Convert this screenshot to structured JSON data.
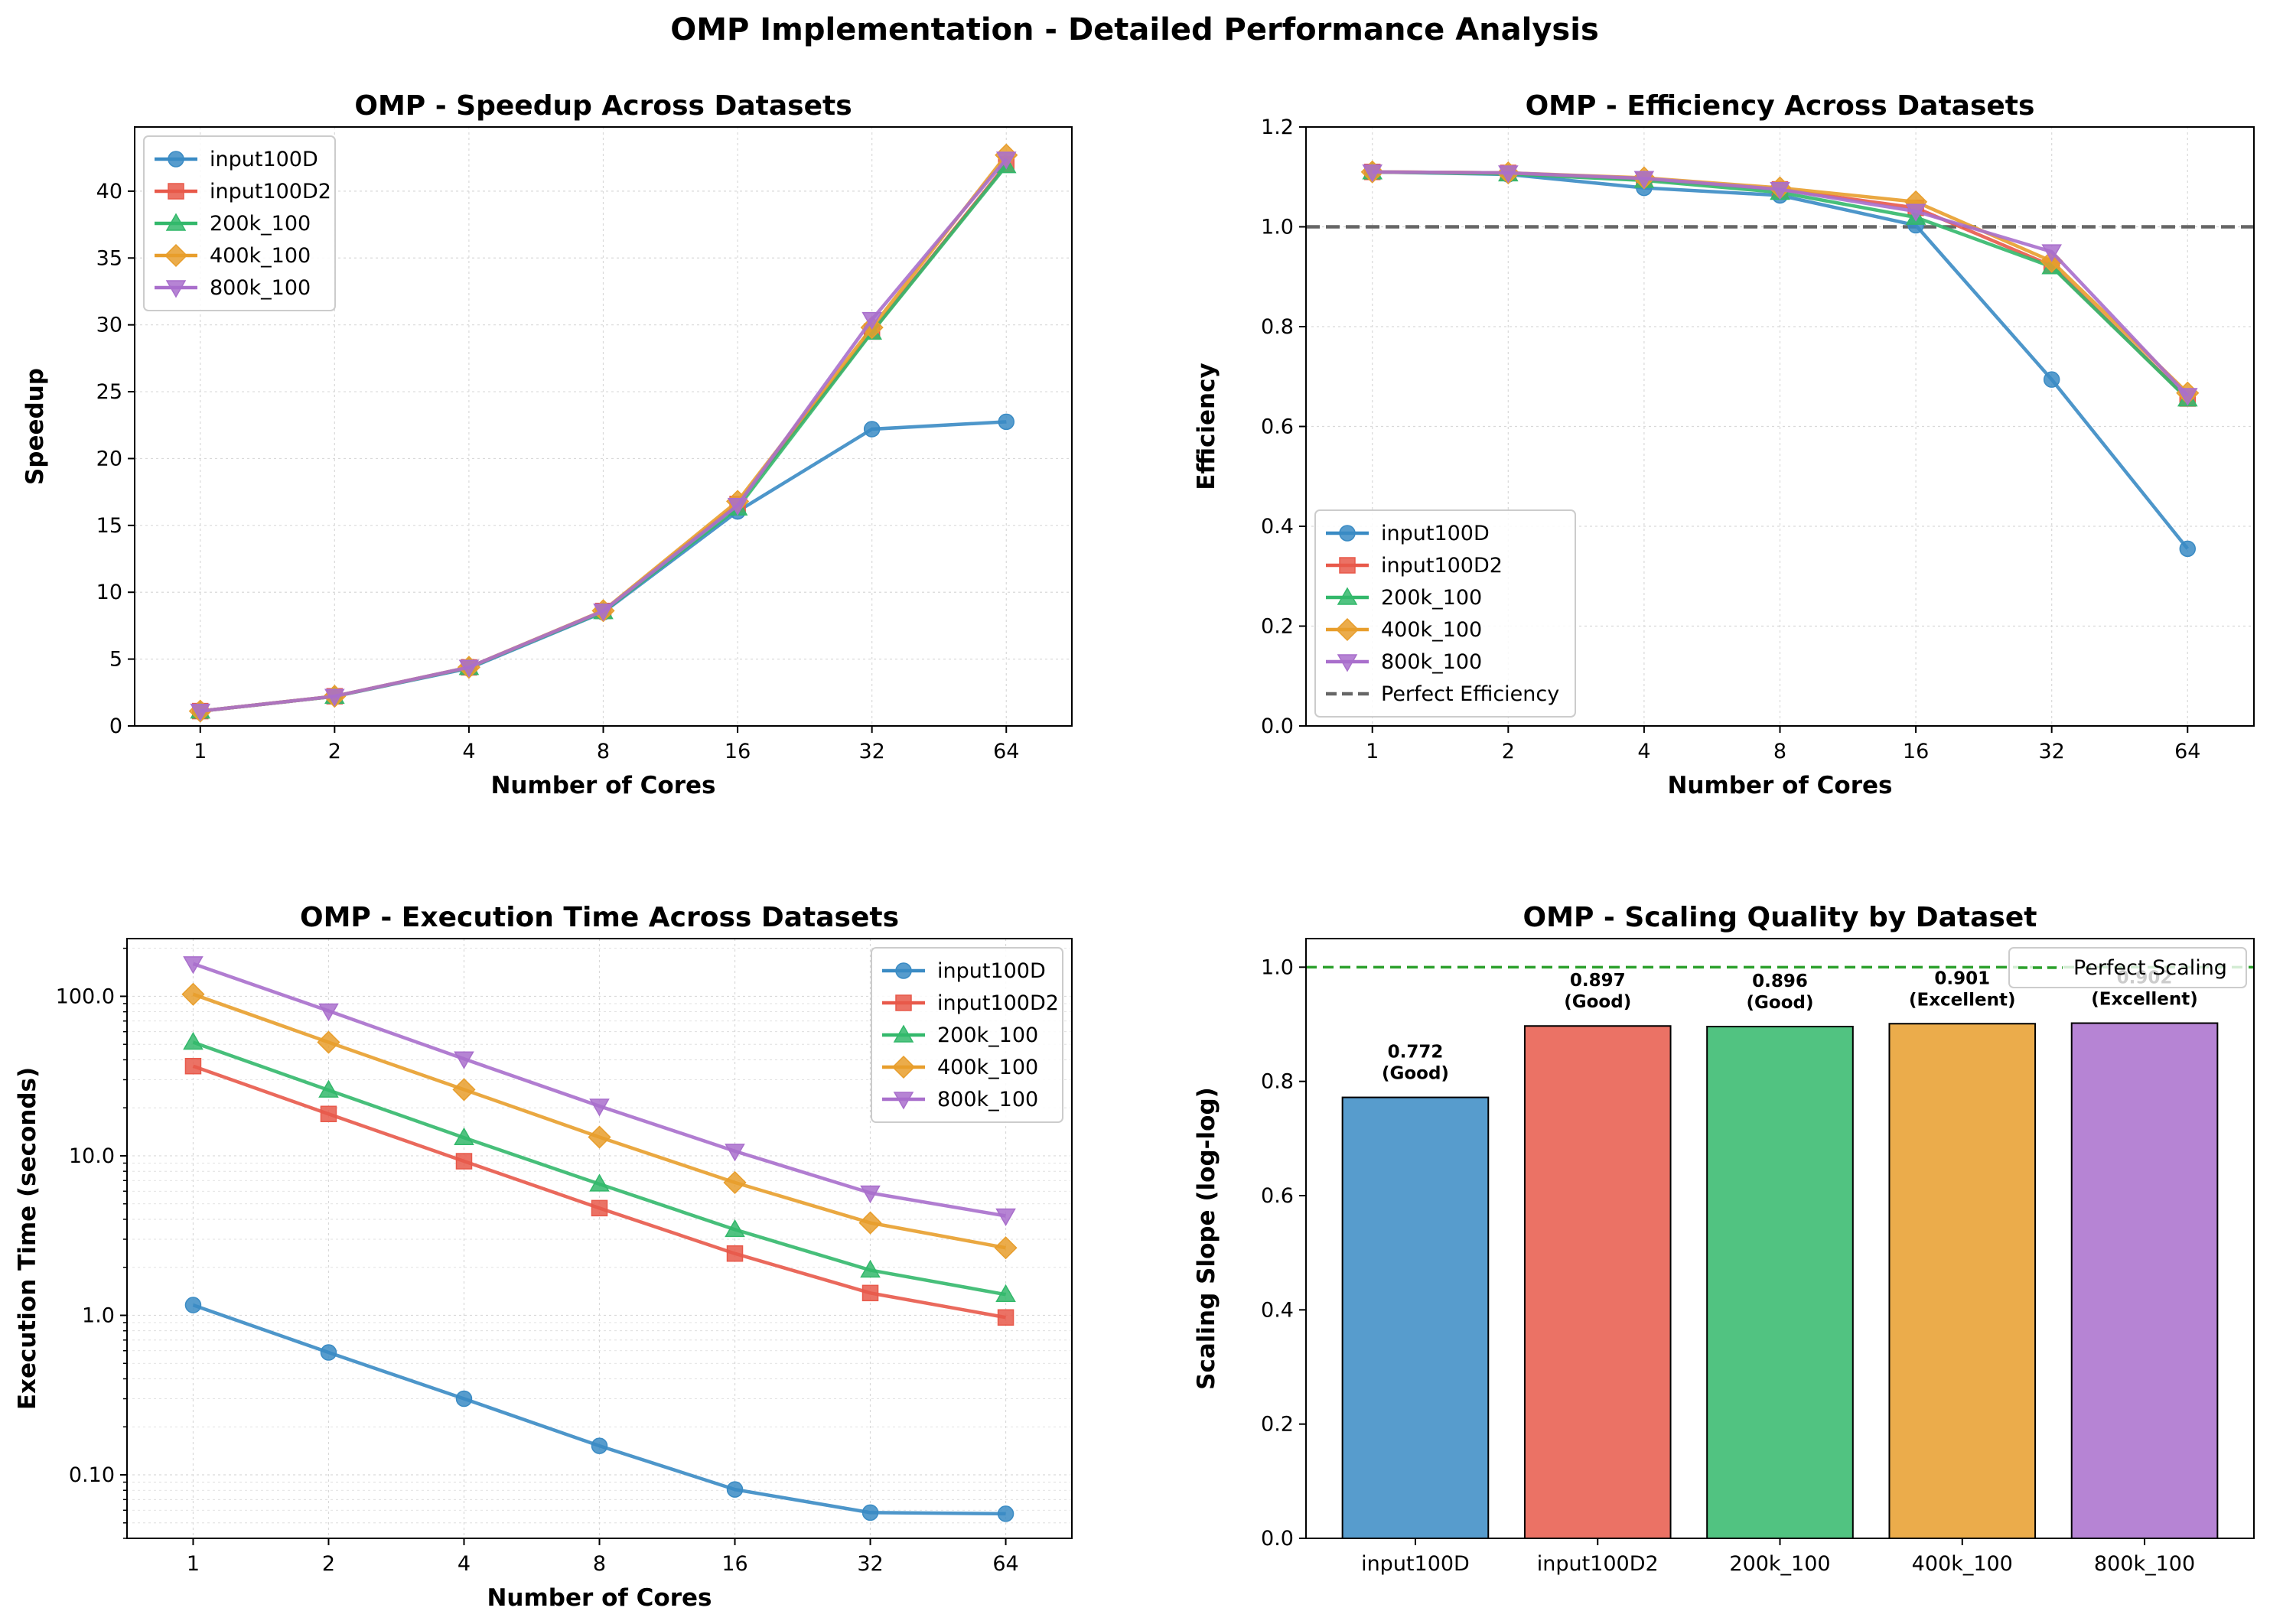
{
  "figure": {
    "title": "OMP Implementation - Detailed Performance Analysis"
  },
  "colors": {
    "input100D": "#3a8bc4",
    "input100D2": "#e8594a",
    "200k_100": "#33b86b",
    "400k_100": "#e89e2c",
    "800k_100": "#a96fcc",
    "perfect_efficiency": "#666666",
    "perfect_scaling": "#2ca02c",
    "grid": "#d9d9d9"
  },
  "chart_data": [
    {
      "id": "speedup",
      "type": "line",
      "title": "OMP - Speedup Across Datasets",
      "xlabel": "Number of Cores",
      "ylabel": "Speedup",
      "x": [
        1,
        2,
        4,
        8,
        16,
        32,
        64
      ],
      "x_scale": "log2",
      "ylim": [
        0,
        44.8
      ],
      "yticks": [
        0,
        5,
        10,
        15,
        20,
        25,
        30,
        35,
        40
      ],
      "grid": true,
      "legend": "top-left",
      "series": [
        {
          "name": "input100D",
          "marker": "circle",
          "values": [
            1.11,
            2.21,
            4.31,
            8.5,
            16.05,
            22.2,
            22.75
          ]
        },
        {
          "name": "input100D2",
          "marker": "square",
          "values": [
            1.11,
            2.22,
            4.38,
            8.6,
            16.6,
            29.5,
            42.0
          ]
        },
        {
          "name": "200k_100",
          "marker": "triangle",
          "values": [
            1.11,
            2.21,
            4.37,
            8.55,
            16.3,
            29.45,
            41.9
          ]
        },
        {
          "name": "400k_100",
          "marker": "diamond",
          "values": [
            1.11,
            2.22,
            4.39,
            8.62,
            16.8,
            29.8,
            42.7
          ]
        },
        {
          "name": "800k_100",
          "marker": "tri_down",
          "values": [
            1.11,
            2.22,
            4.39,
            8.6,
            16.5,
            30.4,
            42.4
          ]
        }
      ]
    },
    {
      "id": "efficiency",
      "type": "line",
      "title": "OMP - Efficiency Across Datasets",
      "xlabel": "Number of Cores",
      "ylabel": "Efficiency",
      "x": [
        1,
        2,
        4,
        8,
        16,
        32,
        64
      ],
      "x_scale": "log2",
      "ylim": [
        0,
        1.2
      ],
      "yticks": [
        0.0,
        0.2,
        0.4,
        0.6,
        0.8,
        1.0,
        1.2
      ],
      "ytick_labels": [
        "0.0",
        "0.2",
        "0.4",
        "0.6",
        "0.8",
        "1.0",
        "1.2"
      ],
      "grid": true,
      "legend": "bottom-left",
      "reference_line": {
        "y": 1.0,
        "label": "Perfect Efficiency"
      },
      "series": [
        {
          "name": "input100D",
          "marker": "circle",
          "values": [
            1.11,
            1.105,
            1.078,
            1.063,
            1.003,
            0.694,
            0.355
          ]
        },
        {
          "name": "input100D2",
          "marker": "square",
          "values": [
            1.11,
            1.108,
            1.095,
            1.075,
            1.038,
            0.922,
            0.656
          ]
        },
        {
          "name": "200k_100",
          "marker": "triangle",
          "values": [
            1.11,
            1.106,
            1.093,
            1.069,
            1.019,
            0.92,
            0.655
          ]
        },
        {
          "name": "400k_100",
          "marker": "diamond",
          "values": [
            1.11,
            1.108,
            1.098,
            1.078,
            1.05,
            0.931,
            0.667
          ]
        },
        {
          "name": "800k_100",
          "marker": "tri_down",
          "values": [
            1.11,
            1.108,
            1.097,
            1.075,
            1.031,
            0.95,
            0.662
          ]
        }
      ]
    },
    {
      "id": "exec_time",
      "type": "line",
      "title": "OMP - Execution Time Across Datasets",
      "xlabel": "Number of Cores",
      "ylabel": "Execution Time (seconds)",
      "x": [
        1,
        2,
        4,
        8,
        16,
        32,
        64
      ],
      "x_scale": "log2",
      "y_scale": "log",
      "ylim": [
        0.04,
        230
      ],
      "yticks": [
        0.1,
        1,
        10,
        100
      ],
      "ytick_labels": [
        "0.10",
        "1.0",
        "10.0",
        "100.0"
      ],
      "grid": true,
      "legend": "top-right",
      "series": [
        {
          "name": "input100D",
          "marker": "circle",
          "values": [
            1.16,
            0.585,
            0.3,
            0.152,
            0.081,
            0.058,
            0.057
          ]
        },
        {
          "name": "input100D2",
          "marker": "square",
          "values": [
            36.5,
            18.3,
            9.25,
            4.7,
            2.44,
            1.38,
            0.97
          ]
        },
        {
          "name": "200k_100",
          "marker": "triangle",
          "values": [
            51.5,
            25.8,
            13.0,
            6.65,
            3.45,
            1.92,
            1.35
          ]
        },
        {
          "name": "400k_100",
          "marker": "diamond",
          "values": [
            103,
            51.5,
            26.0,
            13.1,
            6.8,
            3.8,
            2.65
          ]
        },
        {
          "name": "800k_100",
          "marker": "tri_down",
          "values": [
            160,
            81,
            40.5,
            20.5,
            10.7,
            5.85,
            4.2
          ]
        }
      ]
    },
    {
      "id": "scaling",
      "type": "bar",
      "title": "OMP - Scaling Quality by Dataset",
      "xlabel": "",
      "ylabel": "Scaling Slope (log-log)",
      "categories": [
        "input100D",
        "input100D2",
        "200k_100",
        "400k_100",
        "800k_100"
      ],
      "values": [
        0.772,
        0.897,
        0.896,
        0.901,
        0.902
      ],
      "value_labels": [
        "0.772",
        "0.897",
        "0.896",
        "0.901",
        "0.902"
      ],
      "quality_labels": [
        "(Good)",
        "(Good)",
        "(Good)",
        "(Excellent)",
        "(Excellent)"
      ],
      "ylim": [
        0,
        1.05
      ],
      "yticks": [
        0.0,
        0.2,
        0.4,
        0.6,
        0.8,
        1.0
      ],
      "ytick_labels": [
        "0.0",
        "0.2",
        "0.4",
        "0.6",
        "0.8",
        "1.0"
      ],
      "grid": false,
      "legend": "top-right",
      "reference_line": {
        "y": 1.0,
        "label": "Perfect Scaling"
      }
    }
  ]
}
